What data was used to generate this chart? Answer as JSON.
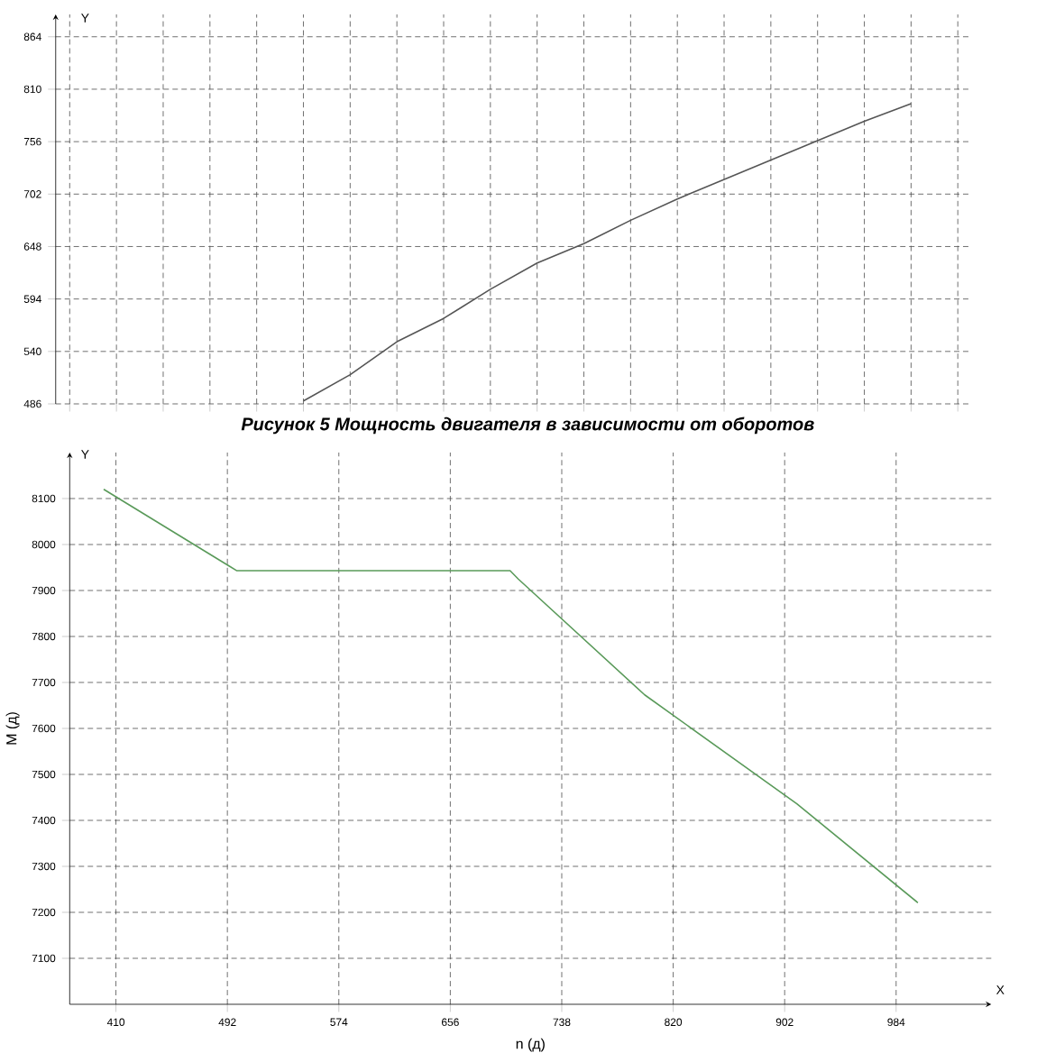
{
  "chart_data": [
    {
      "type": "line",
      "annotations": [
        "Y",
        "Рисунок 5 Мощность двигателя в зависимости  от оборотов"
      ],
      "categories": [
        null,
        null,
        null,
        null,
        null,
        null,
        null,
        null,
        null,
        null,
        null,
        null,
        null,
        null,
        null,
        null,
        null,
        null,
        null,
        null
      ],
      "series": [
        {
          "color": "#555555",
          "values": [
            null,
            null,
            null,
            null,
            null,
            489,
            516,
            550,
            574,
            604,
            631,
            651,
            675,
            697,
            717,
            737,
            757,
            777,
            795,
            null
          ]
        }
      ],
      "ylim": [
        486,
        887
      ],
      "yticks": [
        486,
        540,
        594,
        648,
        702,
        756,
        810,
        864
      ],
      "grid": true,
      "tick_labels": "y",
      "marker": "none",
      "line_style": "solid"
    },
    {
      "type": "line",
      "annotations": [
        "Y",
        "X"
      ],
      "xlabel": "n (д)",
      "ylabel": "M (д)",
      "x": [
        401,
        499,
        700,
        706,
        799,
        911,
        1000
      ],
      "series": [
        {
          "color": "#5a9a5a",
          "values": [
            8120,
            7943,
            7943,
            7925,
            7673,
            7436,
            7221
          ]
        }
      ],
      "xlim": [
        376,
        1054
      ],
      "ylim": [
        7000,
        8200
      ],
      "xticks": [
        410,
        492,
        574,
        656,
        738,
        820,
        902,
        984
      ],
      "yticks": [
        7100,
        7200,
        7300,
        7400,
        7500,
        7600,
        7700,
        7800,
        7900,
        8000,
        8100
      ],
      "grid": true,
      "marker": "none",
      "line_style": "solid"
    }
  ]
}
